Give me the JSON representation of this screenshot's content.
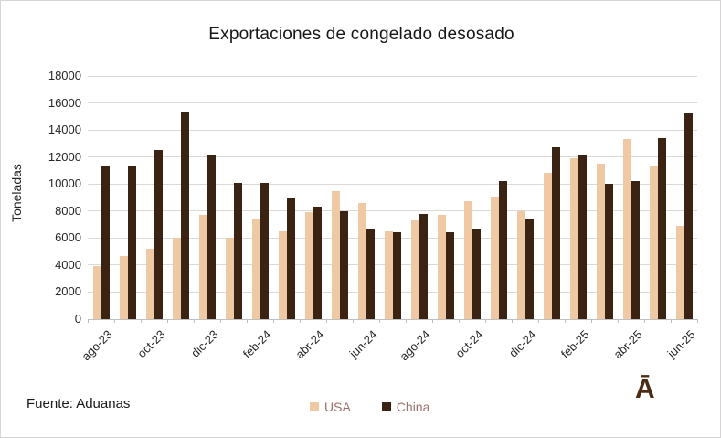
{
  "chart": {
    "title": "Exportaciones de congelado desosado",
    "ylabel": "Toneladas",
    "source": "Fuente: Aduanas",
    "logo": "Ā"
  },
  "chart_data": {
    "type": "bar",
    "title": "Exportaciones de congelado desosado",
    "xlabel": "",
    "ylabel": "Toneladas",
    "ylim": [
      0,
      18000
    ],
    "ytick_step": 2000,
    "grid": true,
    "legend_position": "bottom",
    "categories": [
      "ago-23",
      "sep-23",
      "oct-23",
      "nov-23",
      "dic-23",
      "ene-24",
      "feb-24",
      "mar-24",
      "abr-24",
      "may-24",
      "jun-24",
      "jul-24",
      "ago-24",
      "sep-24",
      "oct-24",
      "nov-24",
      "dic-24",
      "ene-25",
      "feb-25",
      "mar-25",
      "abr-25",
      "may-25",
      "jun-25"
    ],
    "visible_x_tick_labels": [
      "ago-23",
      "oct-23",
      "dic-23",
      "feb-24",
      "abr-24",
      "jun-24",
      "ago-24",
      "oct-24",
      "dic-24",
      "feb-25",
      "abr-25",
      "jun-25"
    ],
    "x_tick_label_interval": 2,
    "series": [
      {
        "name": "USA",
        "color": "#eec9a3",
        "values": [
          3900,
          4700,
          5200,
          6000,
          7700,
          6000,
          7400,
          6500,
          7900,
          9500,
          8600,
          6500,
          7300,
          7700,
          8700,
          9100,
          8000,
          10800,
          11900,
          11500,
          13300,
          11300,
          6900
        ]
      },
      {
        "name": "China",
        "color": "#3b2314",
        "values": [
          11400,
          11400,
          12500,
          15300,
          12100,
          10100,
          10100,
          8900,
          8300,
          8000,
          6700,
          6400,
          7800,
          6400,
          6700,
          10200,
          7400,
          12700,
          12200,
          10000,
          10200,
          13400,
          15200
        ]
      }
    ],
    "colors": {
      "gridline": "#d9d9d9",
      "axis": "#bfbfbf",
      "text": "#262626",
      "legend_text": "#9a716b",
      "logo": "#4b2c12"
    }
  }
}
